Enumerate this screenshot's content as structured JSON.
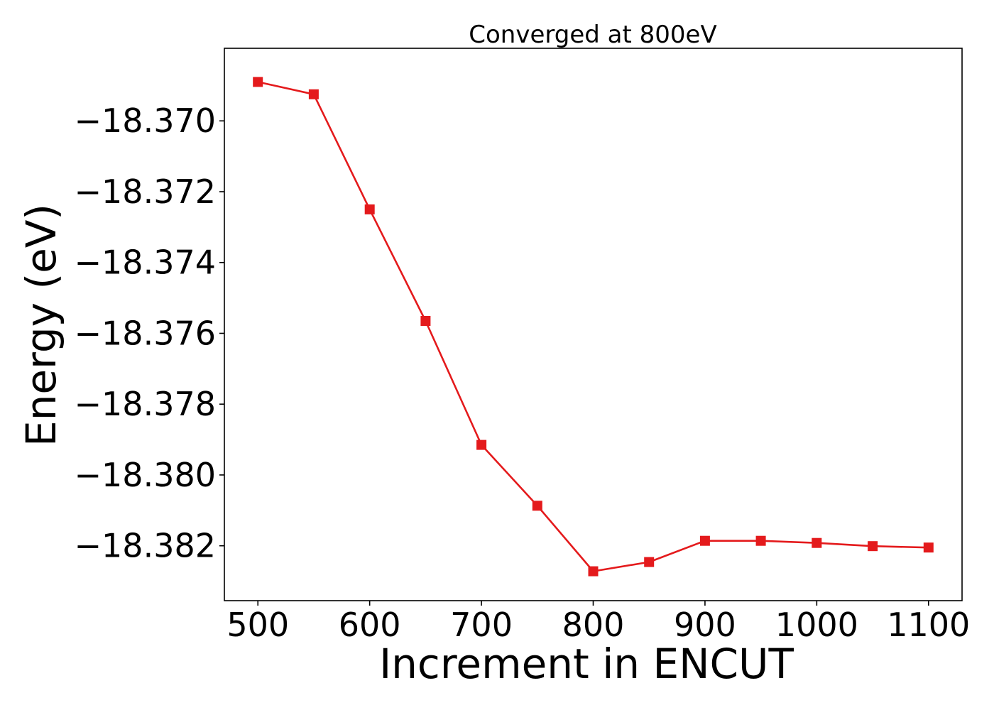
{
  "chart_data": {
    "type": "line",
    "title": "Converged at 800eV",
    "xlabel": "Increment in ENCUT",
    "ylabel": "Energy (eV)",
    "xlim": [
      470,
      1130
    ],
    "ylim": [
      -18.38355,
      -18.36795
    ],
    "xticks": [
      500,
      600,
      700,
      800,
      900,
      1000,
      1100
    ],
    "yticks": [
      -18.37,
      -18.372,
      -18.374,
      -18.376,
      -18.378,
      -18.38,
      -18.382
    ],
    "ytick_labels": [
      "−18.370",
      "−18.372",
      "−18.374",
      "−18.376",
      "−18.378",
      "−18.380",
      "−18.382"
    ],
    "grid": false,
    "legend": false,
    "series": [
      {
        "color": "#e41a1c",
        "marker": "square",
        "x": [
          500,
          550,
          600,
          650,
          700,
          750,
          800,
          850,
          900,
          950,
          1000,
          1050,
          1100
        ],
        "y": [
          -18.3689,
          -18.36925,
          -18.3725,
          -18.37565,
          -18.37915,
          -18.38087,
          -18.38272,
          -18.38246,
          -18.38186,
          -18.38186,
          -18.38192,
          -18.38201,
          -18.38205
        ]
      }
    ]
  }
}
